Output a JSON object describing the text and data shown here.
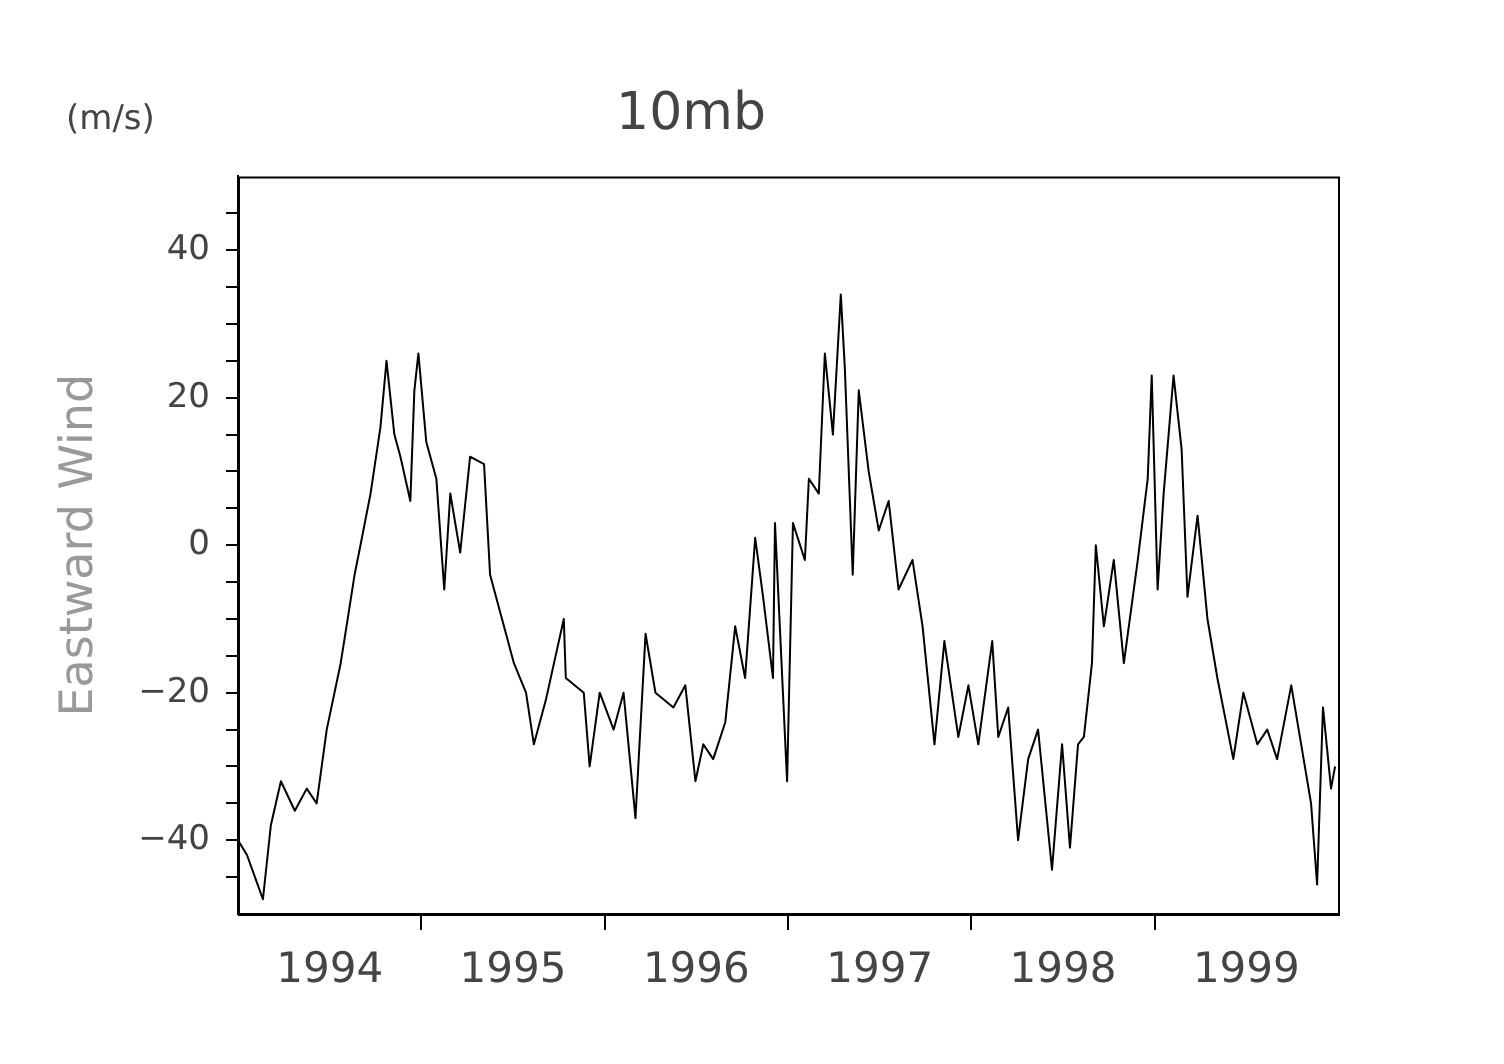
{
  "chart_data": {
    "type": "line",
    "title": "10mb",
    "ylabel": "Eastward Wind",
    "annotations": [
      "(m/s)"
    ],
    "x": [
      1994.0,
      1994.049,
      1994.136,
      1994.179,
      1994.234,
      1994.31,
      1994.375,
      1994.429,
      1994.484,
      1994.56,
      1994.592,
      1994.636,
      1994.668,
      1994.723,
      1994.777,
      1994.81,
      1994.853,
      1994.886,
      1994.94,
      1994.962,
      1994.984,
      1995.027,
      1995.082,
      1995.125,
      1995.158,
      1995.212,
      1995.266,
      1995.342,
      1995.375,
      1995.429,
      1995.505,
      1995.571,
      1995.614,
      1995.679,
      1995.777,
      1995.788,
      1995.886,
      1995.918,
      1995.973,
      1996.049,
      1996.103,
      1996.168,
      1996.223,
      1996.277,
      1996.375,
      1996.44,
      1996.495,
      1996.538,
      1996.592,
      1996.658,
      1996.712,
      1996.766,
      1996.821,
      1996.864,
      1996.918,
      1996.929,
      1996.995,
      1997.027,
      1997.092,
      1997.114,
      1997.168,
      1997.201,
      1997.245,
      1997.288,
      1997.31,
      1997.353,
      1997.386,
      1997.44,
      1997.495,
      1997.549,
      1997.603,
      1997.679,
      1997.734,
      1997.799,
      1997.853,
      1997.929,
      1997.984,
      1998.038,
      1998.114,
      1998.147,
      1998.201,
      1998.255,
      1998.31,
      1998.364,
      1998.44,
      1998.495,
      1998.538,
      1998.582,
      1998.614,
      1998.658,
      1998.679,
      1998.723,
      1998.777,
      1998.832,
      1998.908,
      1998.962,
      1998.984,
      1999.016,
      1999.049,
      1999.103,
      1999.147,
      1999.179,
      1999.234,
      1999.288,
      1999.342,
      1999.429,
      1999.484,
      1999.56,
      1999.614,
      1999.668,
      1999.745,
      1999.799,
      1999.853,
      1999.886,
      1999.918,
      1999.962,
      1999.984
    ],
    "series": [
      {
        "color": "#000000",
        "values": [
          -40,
          -42,
          -48,
          -38,
          -32,
          -36,
          -33,
          -35,
          -25,
          -16,
          -11,
          -4,
          0,
          7,
          16,
          25,
          15,
          12,
          6,
          21,
          26,
          14,
          9,
          -6,
          7,
          -1,
          12,
          11,
          -4,
          -9,
          -16,
          -20,
          -27,
          -21,
          -10,
          -18,
          -20,
          -30,
          -20,
          -25,
          -20,
          -37,
          -12,
          -20,
          -22,
          -19,
          -32,
          -27,
          -29,
          -24,
          -11,
          -18,
          1,
          -7,
          -18,
          3,
          -32,
          3,
          -2,
          9,
          7,
          26,
          15,
          34,
          24,
          -4,
          21,
          10,
          2,
          6,
          -6,
          -2,
          -11,
          -27,
          -13,
          -26,
          -19,
          -27,
          -13,
          -26,
          -22,
          -40,
          -29,
          -25,
          -44,
          -27,
          -41,
          -27,
          -26,
          -16,
          0,
          -11,
          -2,
          -16,
          -2,
          9,
          23,
          -6,
          7,
          23,
          13,
          -7,
          4,
          -10,
          -18,
          -29,
          -20,
          -27,
          -25,
          -29,
          -19,
          -27,
          -35,
          -46,
          -22,
          -33,
          -30
        ]
      }
    ],
    "xlim": [
      1994,
      2000
    ],
    "xticks": [
      {
        "value": 1994.5,
        "label": "1994"
      },
      {
        "value": 1995,
        "label": null
      },
      {
        "value": 1995.5,
        "label": "1995"
      },
      {
        "value": 1996,
        "label": null
      },
      {
        "value": 1996.5,
        "label": "1996"
      },
      {
        "value": 1997,
        "label": null
      },
      {
        "value": 1997.5,
        "label": "1997"
      },
      {
        "value": 1998,
        "label": null
      },
      {
        "value": 1998.5,
        "label": "1998"
      },
      {
        "value": 1999,
        "label": null
      },
      {
        "value": 1999.5,
        "label": "1999"
      }
    ],
    "ylim": [
      -50,
      50
    ],
    "yticks": [
      {
        "value": -45,
        "label": null
      },
      {
        "value": -40,
        "label": "−40"
      },
      {
        "value": -35,
        "label": null
      },
      {
        "value": -30,
        "label": null
      },
      {
        "value": -25,
        "label": null
      },
      {
        "value": -20,
        "label": "−20"
      },
      {
        "value": -15,
        "label": null
      },
      {
        "value": -10,
        "label": null
      },
      {
        "value": -5,
        "label": null
      },
      {
        "value": 0,
        "label": "0"
      },
      {
        "value": 5,
        "label": null
      },
      {
        "value": 10,
        "label": null
      },
      {
        "value": 15,
        "label": null
      },
      {
        "value": 20,
        "label": "20"
      },
      {
        "value": 25,
        "label": null
      },
      {
        "value": 30,
        "label": null
      },
      {
        "value": 35,
        "label": null
      },
      {
        "value": 40,
        "label": "40"
      },
      {
        "value": 45,
        "label": null
      }
    ],
    "grid": false,
    "legend": false,
    "marker": "none",
    "line_style": "solid"
  }
}
